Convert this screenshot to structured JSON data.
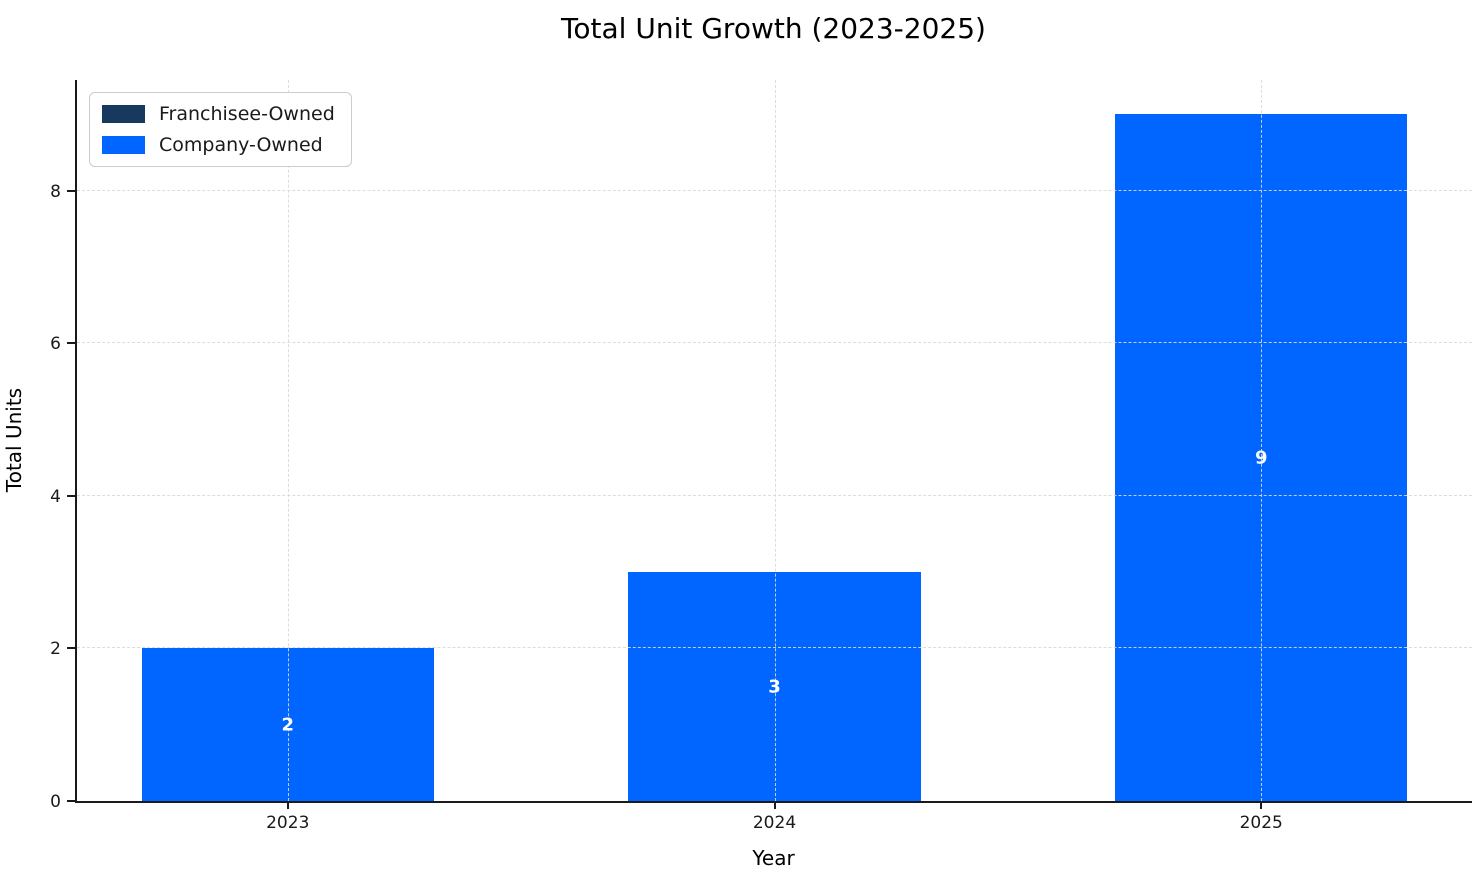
{
  "chart_data": {
    "type": "bar",
    "stacked": true,
    "title": "Total Unit Growth (2023-2025)",
    "xlabel": "Year",
    "ylabel": "Total Units",
    "categories": [
      "2023",
      "2024",
      "2025"
    ],
    "series": [
      {
        "name": "Franchisee-Owned",
        "color": "#17395e",
        "values": [
          0,
          0,
          0
        ]
      },
      {
        "name": "Company-Owned",
        "color": "#0066ff",
        "values": [
          2,
          3,
          9
        ]
      }
    ],
    "bar_total_labels": [
      "2",
      "3",
      "9"
    ],
    "bar_label_color": "#ffffff",
    "yticks": [
      0,
      2,
      4,
      6,
      8
    ],
    "ylim": [
      0,
      9.45
    ],
    "xlim": [
      -0.433,
      2.433
    ],
    "bar_width": 0.6,
    "grid": "dashed light-gray horizontal and vertical gridlines, drawn above bars",
    "legend_position": "upper left",
    "colors": {
      "spine": "#1a1a1a",
      "grid": "#d9d9d9",
      "title_text": "#000000",
      "tick_text": "#1a1a1a",
      "background": "#ffffff"
    }
  }
}
